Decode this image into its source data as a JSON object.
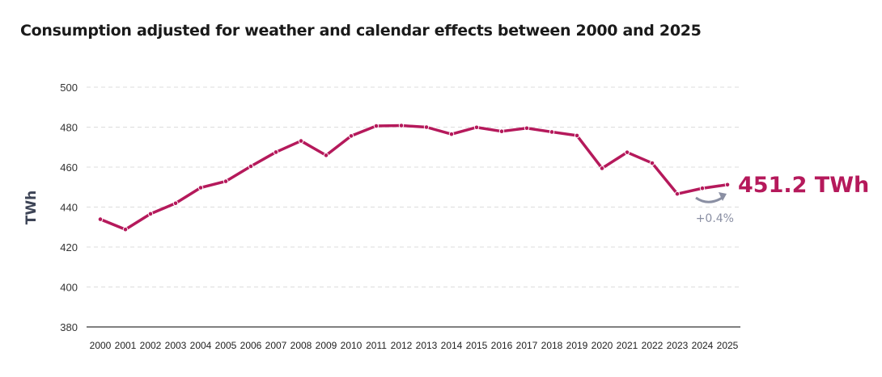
{
  "chart_data": {
    "type": "line",
    "title": "Consumption adjusted for weather and calendar effects between 2000 and 2025",
    "xlabel": "",
    "ylabel": "TWh",
    "ylim": [
      380,
      500
    ],
    "yticks": [
      380,
      400,
      420,
      440,
      460,
      480,
      500
    ],
    "grid": true,
    "categories": [
      "2000",
      "2001",
      "2002",
      "2003",
      "2004",
      "2005",
      "2006",
      "2007",
      "2008",
      "2009",
      "2010",
      "2011",
      "2012",
      "2013",
      "2014",
      "2015",
      "2016",
      "2017",
      "2018",
      "2019",
      "2020",
      "2021",
      "2022",
      "2023",
      "2024",
      "2025"
    ],
    "values": [
      433.9,
      428.8,
      436.6,
      441.9,
      449.7,
      452.9,
      460.4,
      467.5,
      473.1,
      465.9,
      475.6,
      480.6,
      480.8,
      480.0,
      476.5,
      479.9,
      477.9,
      479.5,
      477.6,
      475.8,
      459.4,
      467.4,
      462.0,
      446.6,
      449.4,
      451.2
    ],
    "color": "#b5195b",
    "annotations": {
      "last_value": "451.2 TWh",
      "change": "+0.4%",
      "change_icon": "curved-arrow-up-right-icon",
      "change_color": "#8a8fa3"
    }
  }
}
